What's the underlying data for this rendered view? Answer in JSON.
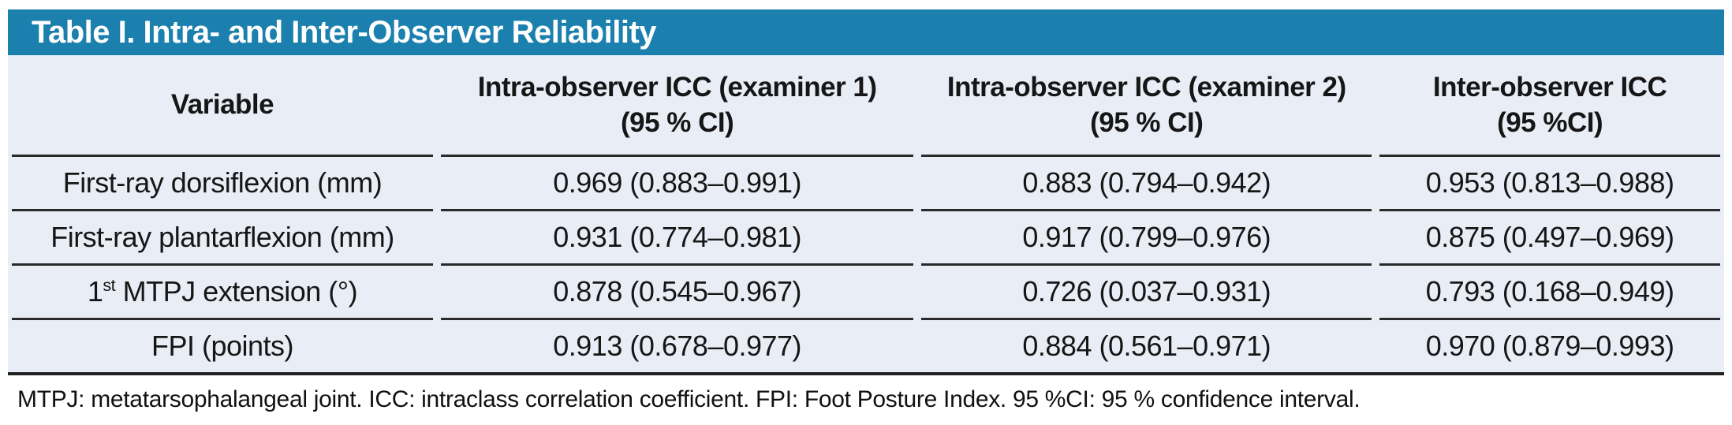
{
  "title": "Table I. Intra- and Inter-Observer Reliability",
  "colors": {
    "header_bar": "#1b80ad",
    "row_background": "#e9edf6",
    "separator_line": "#2a2a2a",
    "title_text": "#ffffff"
  },
  "table": {
    "columns": [
      {
        "label_line1": "Variable",
        "label_line2": ""
      },
      {
        "label_line1": "Intra-observer ICC (examiner 1)",
        "label_line2": "(95 % CI)"
      },
      {
        "label_line1": "Intra-observer ICC (examiner 2)",
        "label_line2": "(95 % CI)"
      },
      {
        "label_line1": "Inter-observer ICC",
        "label_line2": "(95 %CI)"
      }
    ],
    "rows": [
      {
        "v_pre": "First-ray dorsiflexion (mm)",
        "v_sup": "",
        "v_post": "",
        "values": [
          "0.969 (0.883–0.991)",
          "0.883 (0.794–0.942)",
          "0.953 (0.813–0.988)"
        ]
      },
      {
        "v_pre": "First-ray plantarflexion (mm)",
        "v_sup": "",
        "v_post": "",
        "values": [
          "0.931 (0.774–0.981)",
          "0.917 (0.799–0.976)",
          "0.875 (0.497–0.969)"
        ]
      },
      {
        "v_pre": "1",
        "v_sup": "st",
        "v_post": " MTPJ extension (°)",
        "values": [
          "0.878 (0.545–0.967)",
          "0.726 (0.037–0.931)",
          "0.793 (0.168–0.949)"
        ]
      },
      {
        "v_pre": "FPI (points)",
        "v_sup": "",
        "v_post": "",
        "values": [
          "0.913 (0.678–0.977)",
          "0.884 (0.561–0.971)",
          "0.970 (0.879–0.993)"
        ]
      }
    ]
  },
  "footnote": "MTPJ: metatarsophalangeal joint. ICC: intraclass correlation coefficient. FPI: Foot Posture Index. 95 %CI: 95 % confidence interval."
}
